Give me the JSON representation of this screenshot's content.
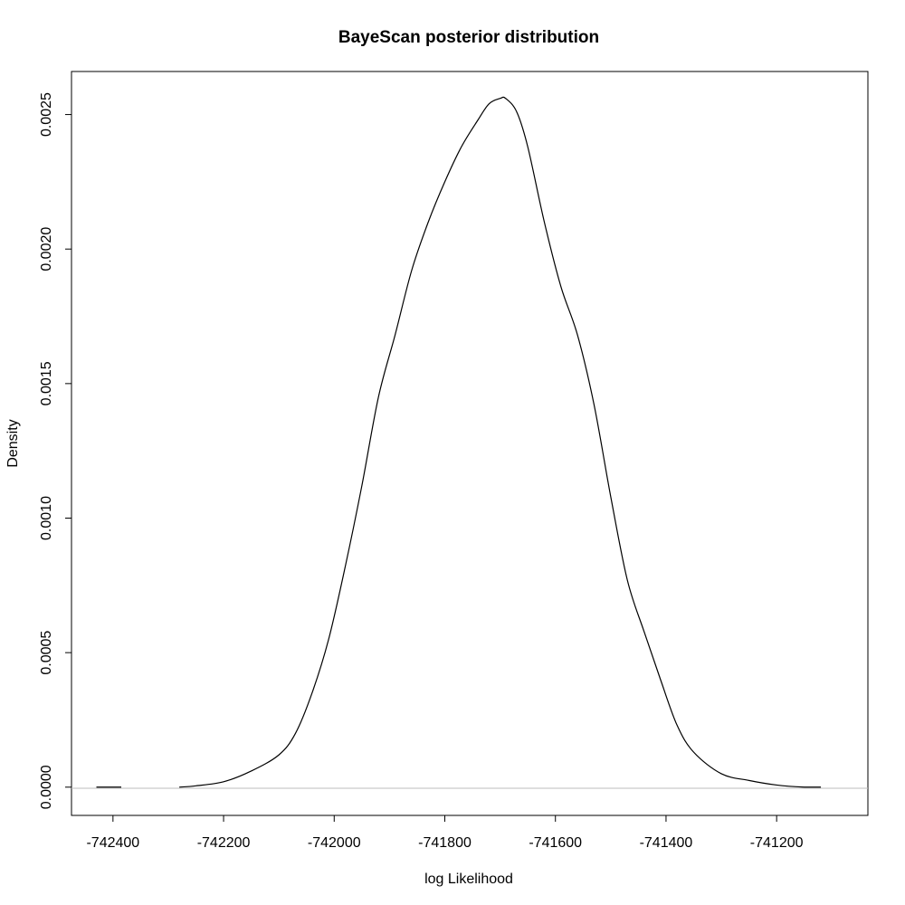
{
  "chart_data": {
    "type": "line",
    "title": "BayeScan posterior distribution",
    "xlabel": "log Likelihood",
    "ylabel": "Density",
    "xlim": [
      -742475,
      -741035
    ],
    "ylim": [
      -0.000105,
      0.00266
    ],
    "x_ticks": [
      -742400,
      -742200,
      -742000,
      -741800,
      -741600,
      -741400,
      -741200
    ],
    "x_tick_labels": [
      "-742400",
      "-742200",
      "-742000",
      "-741800",
      "-741600",
      "-741400",
      "-741200"
    ],
    "y_ticks": [
      0.0,
      0.0005,
      0.001,
      0.0015,
      0.002,
      0.0025
    ],
    "y_tick_labels": [
      "0.0000",
      "0.0005",
      "0.0010",
      "0.0015",
      "0.0020",
      "0.0025"
    ],
    "zero_line": true,
    "series": [
      {
        "x": [
          -742430,
          -742385,
          -742280,
          -742250,
          -742200,
          -742150,
          -742100,
          -742070,
          -742040,
          -742010,
          -741980,
          -741950,
          -741920,
          -741890,
          -741860,
          -741830,
          -741800,
          -741770,
          -741740,
          -741720,
          -741700,
          -741690,
          -741670,
          -741650,
          -741620,
          -741590,
          -741560,
          -741530,
          -741500,
          -741470,
          -741440,
          -741410,
          -741380,
          -741350,
          -741300,
          -741250,
          -741200,
          -741150,
          -741120
        ],
        "y": [
          0.0,
          0.0,
          0.0,
          5e-06,
          2e-05,
          6e-05,
          0.00012,
          0.0002,
          0.00035,
          0.00055,
          0.00082,
          0.00112,
          0.00145,
          0.00168,
          0.00192,
          0.0021,
          0.00225,
          0.00238,
          0.00248,
          0.00254,
          0.00256,
          0.00256,
          0.00251,
          0.00238,
          0.0021,
          0.00186,
          0.00168,
          0.00142,
          0.00108,
          0.00077,
          0.00058,
          0.0004,
          0.00023,
          0.00013,
          5e-05,
          2.5e-05,
          8e-06,
          0.0,
          0.0
        ]
      }
    ]
  }
}
